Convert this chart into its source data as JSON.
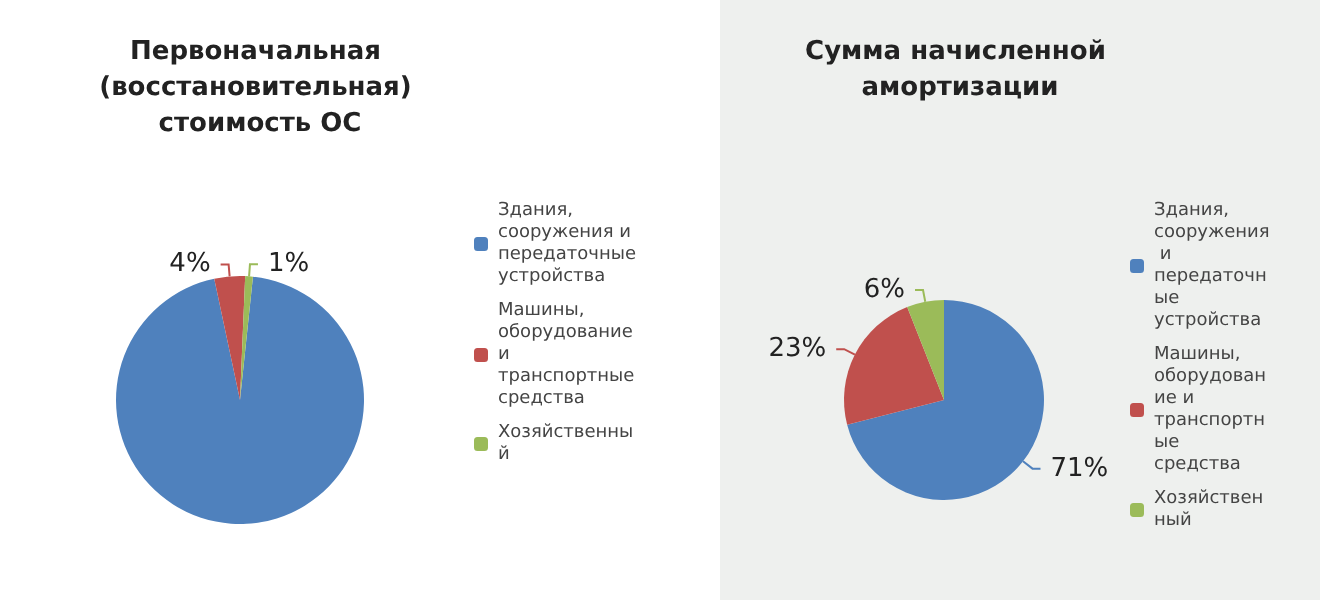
{
  "chart_data": [
    {
      "type": "pie",
      "title": "Первоначальная (восстановительная) стоимость ОС",
      "categories": [
        "Здания, сооружения и передаточные устройства",
        "Машины, оборудование и транспортные средства",
        "Хозяйственный"
      ],
      "values": [
        95,
        4,
        1
      ],
      "value_labels": [
        null,
        "4%",
        "1%"
      ],
      "colors": [
        "#4f81bd",
        "#c0504d",
        "#9bbb59"
      ],
      "legend": "right"
    },
    {
      "type": "pie",
      "title": "Сумма начисленной амортизации",
      "categories": [
        "Здания, сооружения и передаточные устройства",
        "Машины, оборудование и транспортные средства",
        "Хозяйственный"
      ],
      "values": [
        71,
        23,
        6
      ],
      "value_labels": [
        "71%",
        "23%",
        "6%"
      ],
      "colors": [
        "#4f81bd",
        "#c0504d",
        "#9bbb59"
      ],
      "legend": "right"
    }
  ]
}
